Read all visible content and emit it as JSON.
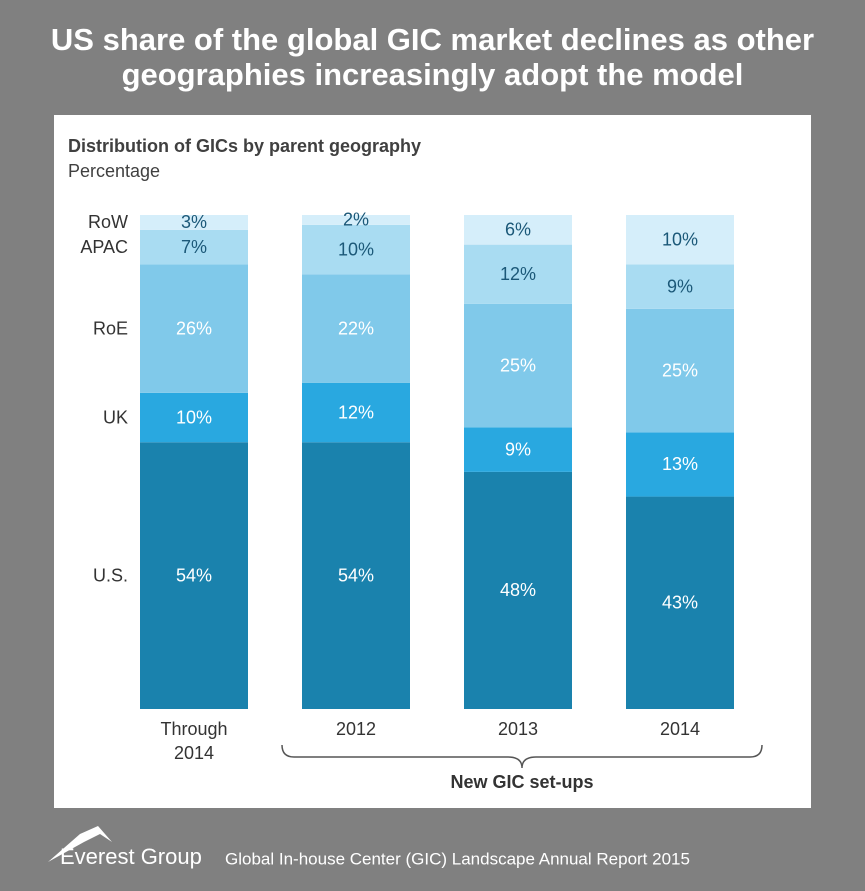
{
  "chart_data": {
    "type": "stacked_bar",
    "title": "US share of the global GIC market declines as other geographies increasingly adopt the model",
    "subtitle": "Distribution of GICs by parent geography",
    "unit_label": "Percentage",
    "categories": [
      "Through 2014",
      "2012",
      "2013",
      "2014"
    ],
    "group_label": "New GIC set-ups",
    "ylim": [
      0,
      100
    ],
    "series": [
      {
        "name": "U.S.",
        "color": "#1a82ad",
        "label_color": "#ffffff",
        "values": [
          54,
          54,
          48,
          43
        ],
        "value_labels": [
          "54%",
          "54%",
          "48%",
          "43%"
        ]
      },
      {
        "name": "UK",
        "color": "#29a8e0",
        "label_color": "#ffffff",
        "values": [
          10,
          12,
          9,
          13
        ],
        "value_labels": [
          "10%",
          "12%",
          "9%",
          "13%"
        ]
      },
      {
        "name": "RoE",
        "color": "#80c9ea",
        "label_color": "#ffffff",
        "values": [
          26,
          22,
          25,
          25
        ],
        "value_labels": [
          "26%",
          "22%",
          "25%",
          "25%"
        ]
      },
      {
        "name": "APAC",
        "color": "#a9dcf2",
        "label_color": "#1b5878",
        "values": [
          7,
          10,
          12,
          9
        ],
        "value_labels": [
          "7%",
          "10%",
          "12%",
          "9%"
        ]
      },
      {
        "name": "RoW",
        "color": "#d5eefa",
        "label_color": "#1b5878",
        "values": [
          3,
          2,
          6,
          10
        ],
        "value_labels": [
          "3%",
          "2%",
          "6%",
          "10%"
        ]
      }
    ]
  },
  "footer": {
    "brand": "Everest Group",
    "source": "Global In-house Center (GIC) Landscape Annual Report 2015"
  }
}
